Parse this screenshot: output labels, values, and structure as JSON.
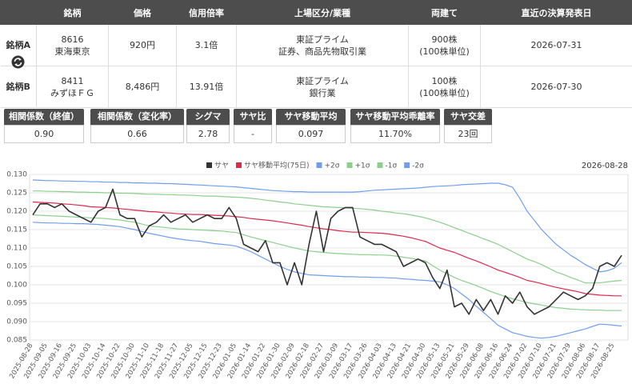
{
  "table": {
    "headers": [
      "銘柄",
      "価格",
      "信用倍率",
      "上場区分/業種",
      "両建て",
      "直近の決算発表日"
    ],
    "rows": [
      {
        "label": "銘柄A",
        "code": "8616",
        "name": "東海東京",
        "price": "920円",
        "margin": "3.1倍",
        "market": "東証プライム",
        "industry": "証券、商品先物取引業",
        "hedge": "900株",
        "unit": "(100株単位)",
        "date": "2026-07-31"
      },
      {
        "label": "銘柄B",
        "code": "8411",
        "name": "みずほＦＧ",
        "price": "8,486円",
        "margin": "13.91倍",
        "market": "東証プライム",
        "industry": "銀行業",
        "hedge": "100株",
        "unit": "(100株単位)",
        "date": "2026-07-30"
      }
    ]
  },
  "stats": {
    "labels": [
      "相関係数（終値）",
      "相関係数（変化率）",
      "シグマ",
      "サヤ比",
      "サヤ移動平均",
      "サヤ移動平均乖離率",
      "サヤ交差"
    ],
    "values": [
      "0.90",
      "0.66",
      "2.78",
      "-",
      "0.097",
      "11.70%",
      "23回"
    ]
  },
  "chart_data": {
    "type": "line",
    "date": "2026-08-28",
    "categories": [
      "2025-08-28",
      null,
      "2025-09-05",
      null,
      "2025-09-16",
      null,
      "2025-09-25",
      null,
      "2025-10-03",
      null,
      "2025-10-14",
      null,
      "2025-10-22",
      null,
      "2025-10-30",
      null,
      "2025-11-10",
      null,
      "2025-11-18",
      null,
      "2025-11-27",
      null,
      "2025-12-05",
      null,
      "2025-12-15",
      null,
      "2025-12-23",
      null,
      "2026-01-05",
      null,
      "2026-01-14",
      null,
      "2026-01-22",
      null,
      "2026-01-30",
      null,
      "2026-02-09",
      null,
      "2026-02-18",
      null,
      "2026-02-27",
      null,
      "2026-03-09",
      null,
      "2026-03-17",
      null,
      "2026-03-26",
      null,
      "2026-04-03",
      null,
      "2026-04-13",
      null,
      "2026-04-21",
      null,
      "2026-04-30",
      null,
      "2026-05-13",
      null,
      "2026-05-21",
      null,
      "2026-05-29",
      null,
      "2026-06-08",
      null,
      "2026-06-16",
      null,
      "2026-06-24",
      null,
      "2026-07-02",
      null,
      "2026-07-10",
      null,
      "2026-07-21",
      null,
      "2026-07-29",
      null,
      "2026-08-06",
      null,
      "2026-08-17",
      null,
      "2026-08-25",
      null
    ],
    "ylim": [
      0.085,
      0.13
    ],
    "yticks": [
      0.085,
      {
        "value": 0.09,
        "label": "0.090"
      },
      0.095,
      {
        "value": 0.1,
        "label": "0.100"
      },
      0.105,
      {
        "value": 0.11,
        "label": "0.110"
      },
      0.115,
      {
        "value": 0.12,
        "label": "0.120"
      },
      0.125,
      {
        "value": 0.13,
        "label": "0.130"
      }
    ],
    "grid": true,
    "series": [
      {
        "name": "サヤ",
        "color": "#333333",
        "values": [
          0.119,
          0.122,
          0.122,
          0.121,
          0.122,
          0.12,
          0.119,
          0.118,
          0.117,
          0.12,
          0.121,
          0.126,
          0.119,
          0.118,
          0.118,
          0.113,
          0.116,
          0.117,
          0.119,
          0.117,
          0.118,
          0.119,
          0.117,
          0.118,
          0.119,
          0.118,
          0.118,
          0.121,
          0.118,
          0.111,
          0.11,
          0.109,
          0.112,
          0.106,
          0.106,
          0.1,
          0.106,
          0.1,
          0.111,
          0.12,
          0.109,
          0.118,
          0.12,
          0.121,
          0.121,
          0.113,
          0.112,
          0.111,
          0.111,
          0.11,
          0.109,
          0.105,
          0.106,
          0.107,
          0.106,
          0.102,
          0.099,
          0.104,
          0.094,
          0.095,
          0.092,
          0.096,
          0.093,
          0.096,
          0.092,
          0.097,
          0.095,
          0.098,
          0.094,
          0.092,
          0.093,
          0.094,
          0.096,
          0.098,
          0.097,
          0.096,
          0.097,
          0.099,
          0.105,
          0.106,
          0.105,
          0.108
        ]
      },
      {
        "name": "サヤ移動平均(75日)",
        "color": "#e0284b",
        "values": [
          0.1225,
          0.1224,
          0.1223,
          0.1222,
          0.122,
          0.1219,
          0.1217,
          0.1215,
          0.1212,
          0.1211,
          0.121,
          0.1209,
          0.1207,
          0.1205,
          0.1203,
          0.1201,
          0.1199,
          0.1198,
          0.1196,
          0.1195,
          0.1193,
          0.1192,
          0.1191,
          0.1191,
          0.119,
          0.1189,
          0.1188,
          0.1187,
          0.1185,
          0.1183,
          0.118,
          0.1178,
          0.1176,
          0.1174,
          0.1171,
          0.1168,
          0.1165,
          0.1162,
          0.1158,
          0.1155,
          0.1152,
          0.115,
          0.1147,
          0.1145,
          0.1143,
          0.1143,
          0.1142,
          0.1141,
          0.114,
          0.1138,
          0.1135,
          0.1132,
          0.1128,
          0.1123,
          0.1118,
          0.1109,
          0.11,
          0.1094,
          0.1088,
          0.108,
          0.1072,
          0.1065,
          0.1057,
          0.1049,
          0.104,
          0.1034,
          0.1027,
          0.102,
          0.1012,
          0.1008,
          0.1003,
          0.0998,
          0.0993,
          0.0989,
          0.0985,
          0.0981,
          0.0976,
          0.0974,
          0.0972,
          0.0971,
          0.097,
          0.097
        ]
      },
      {
        "name": "+2σ",
        "color": "#6f9ef0",
        "values": [
          0.1285,
          0.1284,
          0.1283,
          0.1283,
          0.1282,
          0.1282,
          0.1281,
          0.1281,
          0.128,
          0.128,
          0.1279,
          0.1279,
          0.1278,
          0.1278,
          0.1277,
          0.1277,
          0.1276,
          0.1276,
          0.1275,
          0.1275,
          0.1274,
          0.1273,
          0.1272,
          0.1271,
          0.127,
          0.1269,
          0.1268,
          0.1267,
          0.1266,
          0.1264,
          0.1262,
          0.126,
          0.1258,
          0.1256,
          0.1255,
          0.1254,
          0.1253,
          0.1253,
          0.1252,
          0.1252,
          0.1252,
          0.1252,
          0.1252,
          0.1252,
          0.1252,
          0.1253,
          0.1255,
          0.1257,
          0.1258,
          0.1259,
          0.126,
          0.1261,
          0.1262,
          0.1263,
          0.1265,
          0.1267,
          0.1268,
          0.1269,
          0.127,
          0.1272,
          0.1273,
          0.1274,
          0.1275,
          0.1276,
          0.1276,
          0.1272,
          0.1265,
          0.1235,
          0.12,
          0.1175,
          0.115,
          0.113,
          0.111,
          0.1095,
          0.108,
          0.1068,
          0.1055,
          0.1045,
          0.1035,
          0.1038,
          0.1045,
          0.106
        ]
      },
      {
        "name": "+1σ",
        "color": "#8ccf8c",
        "values": [
          0.1255,
          0.1255,
          0.1254,
          0.1254,
          0.1253,
          0.1253,
          0.1252,
          0.1252,
          0.1251,
          0.1251,
          0.125,
          0.125,
          0.1249,
          0.1249,
          0.1248,
          0.1247,
          0.1246,
          0.1246,
          0.1245,
          0.1245,
          0.1244,
          0.1244,
          0.1243,
          0.1242,
          0.1241,
          0.1241,
          0.124,
          0.1239,
          0.1238,
          0.1237,
          0.1235,
          0.1233,
          0.123,
          0.1228,
          0.1225,
          0.1223,
          0.122,
          0.1218,
          0.1216,
          0.1214,
          0.1212,
          0.1211,
          0.121,
          0.1209,
          0.1208,
          0.1207,
          0.1205,
          0.1203,
          0.12,
          0.1198,
          0.1195,
          0.1193,
          0.119,
          0.1186,
          0.1182,
          0.1176,
          0.117,
          0.1163,
          0.1155,
          0.1148,
          0.114,
          0.1133,
          0.1125,
          0.1118,
          0.111,
          0.11,
          0.109,
          0.108,
          0.107,
          0.1063,
          0.1055,
          0.1045,
          0.1035,
          0.1028,
          0.102,
          0.1013,
          0.1005,
          0.1005,
          0.1005,
          0.1008,
          0.101,
          0.1012
        ]
      },
      {
        "name": "-1σ",
        "color": "#8ccf8c",
        "values": [
          0.119,
          0.1189,
          0.1188,
          0.1187,
          0.1186,
          0.1185,
          0.1184,
          0.1183,
          0.1182,
          0.1181,
          0.118,
          0.1178,
          0.1176,
          0.1173,
          0.117,
          0.1165,
          0.116,
          0.1158,
          0.1156,
          0.1154,
          0.1152,
          0.1151,
          0.115,
          0.1149,
          0.1148,
          0.1147,
          0.1146,
          0.1144,
          0.1142,
          0.1136,
          0.113,
          0.1125,
          0.112,
          0.1115,
          0.111,
          0.1105,
          0.11,
          0.1096,
          0.1092,
          0.109,
          0.1088,
          0.1086,
          0.1085,
          0.1084,
          0.1083,
          0.1082,
          0.1082,
          0.1081,
          0.1081,
          0.108,
          0.1078,
          0.1075,
          0.1072,
          0.1069,
          0.1065,
          0.1052,
          0.104,
          0.103,
          0.102,
          0.1012,
          0.1005,
          0.0998,
          0.099,
          0.0982,
          0.0975,
          0.0968,
          0.0962,
          0.0957,
          0.0952,
          0.0948,
          0.0945,
          0.0941,
          0.0938,
          0.0936,
          0.0934,
          0.0933,
          0.0932,
          0.0931,
          0.0931,
          0.093,
          0.093,
          0.093
        ]
      },
      {
        "name": "-2σ",
        "color": "#6f9ef0",
        "values": [
          0.117,
          0.1169,
          0.1168,
          0.1168,
          0.1167,
          0.1167,
          0.1166,
          0.1166,
          0.1165,
          0.1164,
          0.1162,
          0.116,
          0.1158,
          0.1154,
          0.115,
          0.1145,
          0.114,
          0.1136,
          0.1132,
          0.1128,
          0.1125,
          0.1122,
          0.112,
          0.1118,
          0.1115,
          0.1112,
          0.111,
          0.1108,
          0.1105,
          0.1098,
          0.109,
          0.108,
          0.107,
          0.106,
          0.105,
          0.1042,
          0.1035,
          0.1031,
          0.1027,
          0.1026,
          0.1025,
          0.1024,
          0.1023,
          0.1022,
          0.1022,
          0.1021,
          0.1021,
          0.102,
          0.102,
          0.1019,
          0.1018,
          0.1016,
          0.1015,
          0.1013,
          0.1012,
          0.101,
          0.1008,
          0.1,
          0.099,
          0.0975,
          0.096,
          0.0942,
          0.0925,
          0.0908,
          0.089,
          0.088,
          0.087,
          0.0865,
          0.086,
          0.0857,
          0.0855,
          0.0857,
          0.086,
          0.0865,
          0.087,
          0.0875,
          0.088,
          0.0887,
          0.0893,
          0.0892,
          0.089,
          0.0888
        ]
      }
    ]
  }
}
